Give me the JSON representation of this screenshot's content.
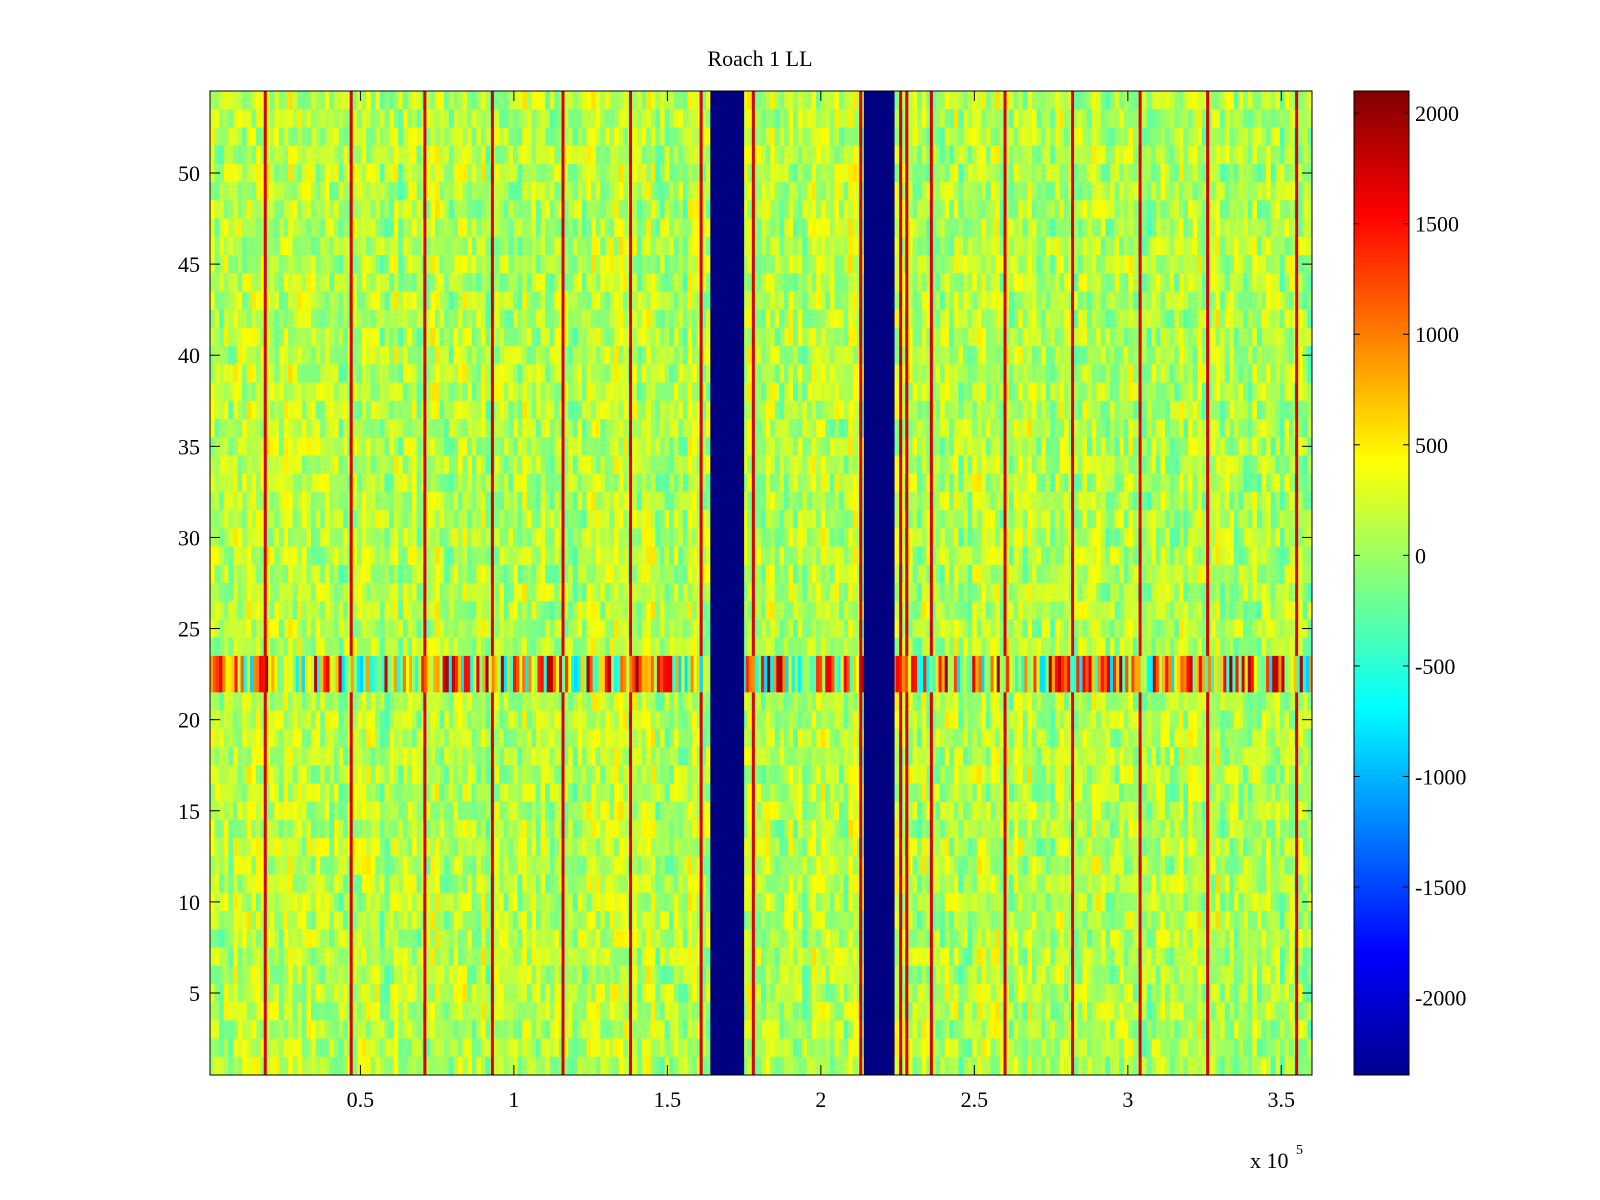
{
  "chart_data": {
    "type": "heatmap",
    "title": "Roach 1 LL",
    "xlabel": "",
    "ylabel": "",
    "x_range": [
      1000,
      360000
    ],
    "y_range": [
      0.5,
      54.5
    ],
    "x_ticks": [
      50000,
      100000,
      150000,
      200000,
      250000,
      300000,
      350000
    ],
    "x_tick_labels": [
      "0.5",
      "1",
      "1.5",
      "2",
      "2.5",
      "3",
      "3.5"
    ],
    "x_multiplier_label": "x 10",
    "x_multiplier_exponent": "5",
    "y_ticks": [
      5,
      10,
      15,
      20,
      25,
      30,
      35,
      40,
      45,
      50
    ],
    "y_tick_labels": [
      "5",
      "10",
      "15",
      "20",
      "25",
      "30",
      "35",
      "40",
      "45",
      "50"
    ],
    "colorbar": {
      "colormap": "jet",
      "range": [
        -2350,
        2100
      ],
      "ticks": [
        2000,
        1500,
        1000,
        500,
        0,
        -500,
        -1000,
        -1500,
        -2000
      ],
      "tick_labels": [
        "2000",
        "1500",
        "1000",
        "500",
        "0",
        "-500",
        "-1000",
        "-1500",
        "-2000"
      ]
    },
    "background_value": 0,
    "low_value_bands": [
      {
        "x_start": 164000,
        "x_end": 175000,
        "value": -2350
      },
      {
        "x_start": 214000,
        "x_end": 224000,
        "value": -2350
      }
    ],
    "high_value_lines_x": [
      19000,
      47000,
      71000,
      93000,
      116000,
      138000,
      161000,
      178000,
      213000,
      226000,
      228000,
      236000,
      260000,
      282000,
      304000,
      326000,
      355000
    ],
    "high_value_line_value": 1700,
    "noisy_row_band": {
      "y_start": 21.5,
      "y_end": 23.5,
      "value_range": [
        -900,
        2000
      ]
    },
    "grid": false,
    "colorbar_position": "right"
  }
}
